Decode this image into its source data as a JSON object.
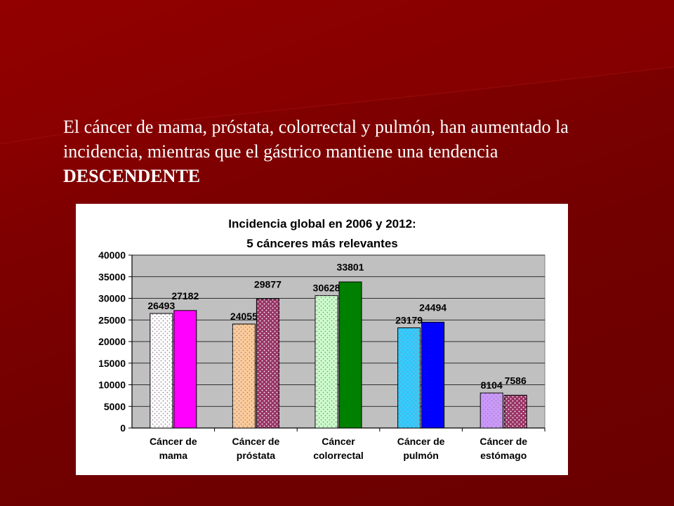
{
  "slide": {
    "text_main": "El cáncer de mama, próstata, colorrectal y pulmón, han aumentado la incidencia, mientras que el gástrico mantiene una tendencia ",
    "text_emph": "DESCENDENTE"
  },
  "colors": {
    "background": "#7a0000",
    "plot_area": "#c0c0c0",
    "text": "#ffffff"
  },
  "chart_data": {
    "type": "bar",
    "title_line1": "Incidencia global en 2006 y 2012:",
    "title_line2": "5 cánceres más relevantes",
    "categories": [
      [
        "Cáncer de",
        "mama"
      ],
      [
        "Cáncer de",
        "próstata"
      ],
      [
        "Cáncer",
        "colorrectal"
      ],
      [
        "Cáncer de",
        "pulmón"
      ],
      [
        "Cáncer de",
        "estómago"
      ]
    ],
    "series": [
      {
        "values": [
          26493,
          24055,
          30628,
          23179,
          8104
        ],
        "colors": [
          "#ffffff",
          "#ffcc99",
          "#ccffcc",
          "#33ccff",
          "#cc99ff"
        ],
        "dotted": true
      },
      {
        "values": [
          27182,
          29877,
          33801,
          24494,
          7586
        ],
        "colors": [
          "#ff00ff",
          "#993366",
          "#008000",
          "#0000ff",
          "#993366"
        ],
        "dotted": [
          false,
          true,
          false,
          false,
          true
        ]
      }
    ],
    "ylim": [
      0,
      40000
    ],
    "yticks": [
      0,
      5000,
      10000,
      15000,
      20000,
      25000,
      30000,
      35000,
      40000
    ],
    "grid": true,
    "legend": false
  }
}
